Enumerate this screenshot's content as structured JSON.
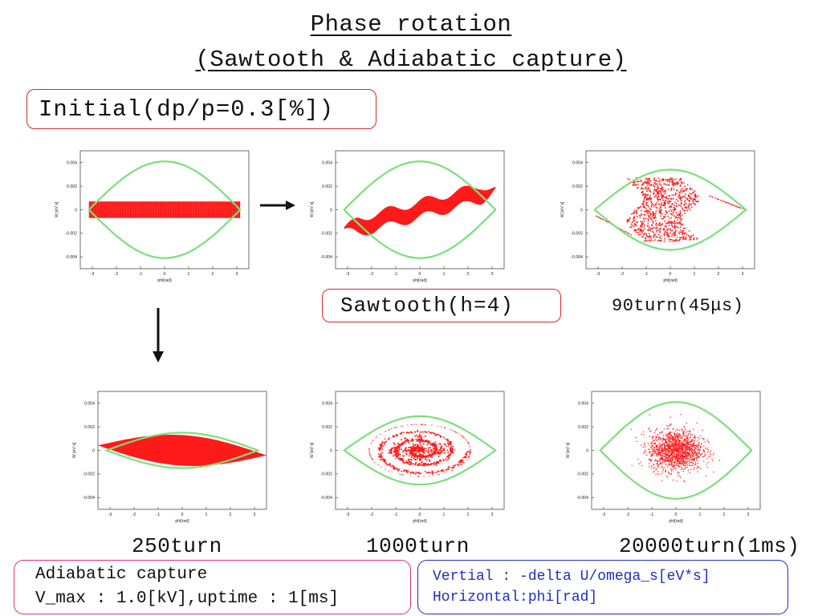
{
  "title": {
    "line1": "Phase rotation",
    "line2": "(Sawtooth & Adiabatic capture)"
  },
  "labels": {
    "initial": "Initial(dp/p=0.3[%])",
    "sawtooth": "Sawtooth(h=4)",
    "turn90": "90turn(45μs)",
    "turn250": "250turn",
    "turn1000": "1000turn",
    "turn20000": "20000turn(1ms)"
  },
  "info_box": {
    "line1": "Adiabatic capture",
    "line2": "V_max : 1.0[kV],uptime : 1[ms]"
  },
  "axis_box": {
    "line1": "Vertial : -delta U/omega_s[eV*s]",
    "line2": "Horizontal:phi[rad]"
  },
  "colors": {
    "separatrix": "#7be07b",
    "particles": "#ff1a1a",
    "box_red": "#d9262a",
    "box_pink": "#e0307a",
    "box_blue": "#1f2fbf",
    "arrow": "#111111"
  },
  "arrows": [
    {
      "name": "arrow-right-icon",
      "direction": "right"
    },
    {
      "name": "arrow-down-icon",
      "direction": "down"
    }
  ],
  "chart_data": [
    {
      "type": "scatter",
      "panel": "initial",
      "xlabel": "phi[rad]",
      "ylabel": "W [eV s]",
      "xlim": [
        -3.5,
        3.5
      ],
      "ylim": [
        -0.005,
        0.005
      ],
      "x_ticks": [
        "-3",
        "-2",
        "-1",
        "0",
        "1",
        "2",
        "3"
      ],
      "y_ticks": [
        "-0.004",
        "-0.002",
        "0",
        "0.002",
        "0.004"
      ],
      "separatrix_height": 0.0041,
      "series": [
        {
          "distribution": "rectangle",
          "x_range": [
            -3.14,
            3.14
          ],
          "y_range": [
            -0.0007,
            0.0007
          ]
        }
      ]
    },
    {
      "type": "scatter",
      "panel": "sawtooth",
      "xlabel": "phi[rad]",
      "ylabel": "W [eV s]",
      "xlim": [
        -3.5,
        3.5
      ],
      "ylim": [
        -0.005,
        0.005
      ],
      "x_ticks": [
        "-3",
        "-2",
        "-1",
        "0",
        "1",
        "2",
        "3"
      ],
      "y_ticks": [
        "-0.004",
        "-0.002",
        "0",
        "0.002",
        "0.004"
      ],
      "separatrix_height": 0.0041,
      "series": [
        {
          "distribution": "sawtooth-wave",
          "x_range": [
            -3.14,
            3.14
          ],
          "slope": 0.00055,
          "amplitude": 0.00035,
          "halfwidth": 0.00065
        }
      ]
    },
    {
      "type": "scatter",
      "panel": "90turn",
      "xlabel": "phi[rad]",
      "ylabel": "W [eV s]",
      "xlim": [
        -3.5,
        3.5
      ],
      "ylim": [
        -0.005,
        0.005
      ],
      "x_ticks": [
        "-3",
        "-2",
        "-1",
        "0",
        "1",
        "2",
        "3"
      ],
      "y_ticks": [
        "-0.004",
        "-0.002",
        "0",
        "0.002",
        "0.004"
      ],
      "separatrix_height": 0.0034,
      "series": [
        {
          "distribution": "rotated-band",
          "x_range": [
            -1.5,
            1.4
          ],
          "y_range": [
            -0.0027,
            0.0027
          ]
        }
      ]
    },
    {
      "type": "scatter",
      "panel": "250turn",
      "xlabel": "phi[rad]",
      "ylabel": "W [eV s]",
      "xlim": [
        -3.5,
        3.5
      ],
      "ylim": [
        -0.005,
        0.005
      ],
      "x_ticks": [
        "-3",
        "-2",
        "-1",
        "0",
        "1",
        "2",
        "3"
      ],
      "y_ticks": [
        "-0.004",
        "-0.002",
        "0",
        "0.002",
        "0.004"
      ],
      "separatrix_height": 0.0015,
      "series": [
        {
          "distribution": "filled-bucket",
          "x_range": [
            -3.5,
            3.5
          ],
          "y_range": [
            -0.0015,
            0.0015
          ]
        }
      ]
    },
    {
      "type": "scatter",
      "panel": "1000turn",
      "xlabel": "phi[rad]",
      "ylabel": "W [eV s]",
      "xlim": [
        -3.5,
        3.5
      ],
      "ylim": [
        -0.005,
        0.005
      ],
      "x_ticks": [
        "-3",
        "-2",
        "-1",
        "0",
        "1",
        "2",
        "3"
      ],
      "y_ticks": [
        "-0.004",
        "-0.002",
        "0",
        "0.002",
        "0.004"
      ],
      "separatrix_height": 0.0029,
      "series": [
        {
          "distribution": "spiral",
          "radius_phi": 2.0,
          "radius_w": 0.0021
        }
      ]
    },
    {
      "type": "scatter",
      "panel": "20000turn",
      "xlabel": "phi[rad]",
      "ylabel": "W [eV s]",
      "xlim": [
        -3.5,
        3.5
      ],
      "ylim": [
        -0.005,
        0.005
      ],
      "x_ticks": [
        "-3",
        "-2",
        "-1",
        "0",
        "1",
        "2",
        "3"
      ],
      "y_ticks": [
        "-0.004",
        "-0.002",
        "0",
        "0.002",
        "0.004"
      ],
      "separatrix_height": 0.0041,
      "series": [
        {
          "distribution": "gaussian-blob",
          "sigma_phi": 0.55,
          "sigma_w": 0.00085
        }
      ]
    }
  ]
}
